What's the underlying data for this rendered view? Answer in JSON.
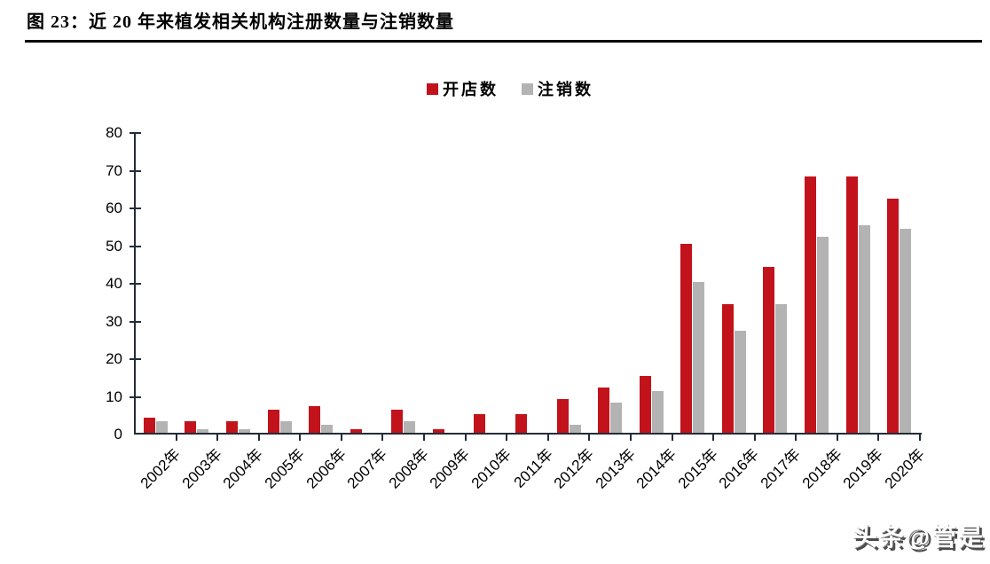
{
  "figure": {
    "title": "图 23：近 20 年来植发相关机构注册数量与注销数量",
    "watermark": "头条@管是"
  },
  "chart_data": {
    "type": "bar",
    "title": "近 20 年来植发相关机构注册数量与注销数量",
    "categories": [
      "2002年",
      "2003年",
      "2004年",
      "2005年",
      "2006年",
      "2007年",
      "2008年",
      "2009年",
      "2010年",
      "2011年",
      "2012年",
      "2013年",
      "2014年",
      "2015年",
      "2016年",
      "2017年",
      "2018年",
      "2019年",
      "2020年"
    ],
    "series": [
      {
        "name": "开店数",
        "color": "#C2121B",
        "values": [
          4,
          3,
          3,
          6,
          7,
          1,
          6,
          1,
          5,
          5,
          9,
          12,
          15,
          50,
          34,
          44,
          68,
          68,
          62
        ]
      },
      {
        "name": "注销数",
        "color": "#B3B3B3",
        "values": [
          3,
          1,
          1,
          3,
          2,
          0,
          3,
          0,
          0,
          0,
          2,
          8,
          11,
          40,
          27,
          34,
          52,
          55,
          54
        ]
      }
    ],
    "xlabel": "",
    "ylabel": "",
    "ylim": [
      0,
      80
    ],
    "ytick_step": 10,
    "grid": false,
    "legend_position": "top-center",
    "axis_color": "#232C39"
  }
}
